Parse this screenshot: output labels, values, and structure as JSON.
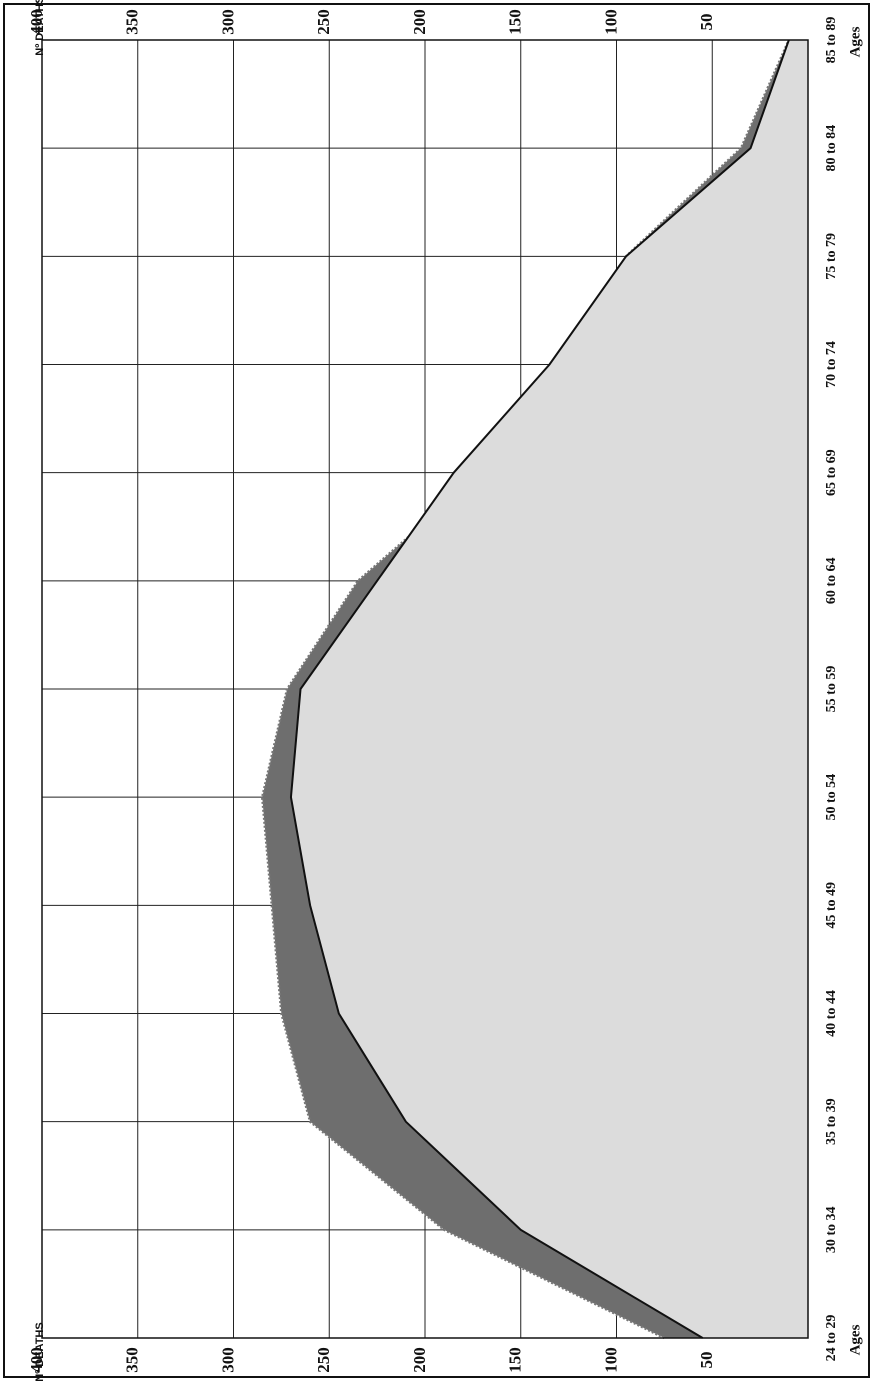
{
  "chart_data": {
    "type": "area",
    "value_axis_label": "Nº DEATHS",
    "category_axis_label": "Ages",
    "categories": [
      "24 to 29",
      "30 to 34",
      "35 to 39",
      "40 to 44",
      "45 to 49",
      "50 to 54",
      "55 to 59",
      "60 to 64",
      "65 to 69",
      "70 to 74",
      "75 to 79",
      "80 to 84",
      "85 to 89"
    ],
    "series": [
      {
        "color": "#dcdcdc",
        "values": [
          55,
          150,
          210,
          245,
          260,
          270,
          265,
          225,
          185,
          135,
          95,
          30,
          10
        ]
      },
      {
        "color": "#6e6e6e",
        "values": [
          75,
          190,
          260,
          275,
          280,
          285,
          272,
          235,
          170,
          125,
          95,
          35,
          10
        ]
      }
    ],
    "xlim": [
      400,
      0
    ],
    "xticks": [
      400,
      350,
      300,
      250,
      200,
      150,
      100,
      50
    ],
    "grid": true
  }
}
